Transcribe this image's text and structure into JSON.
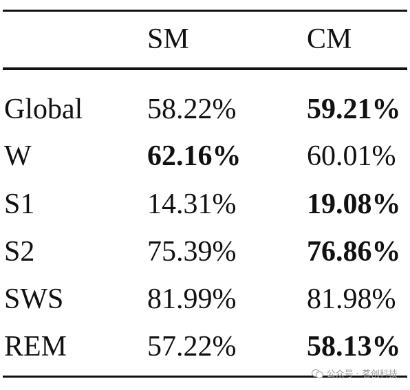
{
  "table": {
    "headers": [
      "",
      "SM",
      "CM"
    ],
    "rows": [
      {
        "label": "Global",
        "sm": "58.22%",
        "cm": "59.21%",
        "bold": "cm"
      },
      {
        "label": "W",
        "sm": "62.16%",
        "cm": "60.01%",
        "bold": "sm"
      },
      {
        "label": "S1",
        "sm": "14.31%",
        "cm": "19.08%",
        "bold": "cm"
      },
      {
        "label": "S2",
        "sm": "75.39%",
        "cm": "76.86%",
        "bold": "cm"
      },
      {
        "label": "SWS",
        "sm": "81.99%",
        "cm": "81.98%",
        "bold": "sm"
      },
      {
        "label": "REM",
        "sm": "57.22%",
        "cm": "58.13%",
        "bold": "cm"
      }
    ]
  },
  "watermark": {
    "text": "公众号 · 茗创科技",
    "icon": "wechat-icon"
  }
}
